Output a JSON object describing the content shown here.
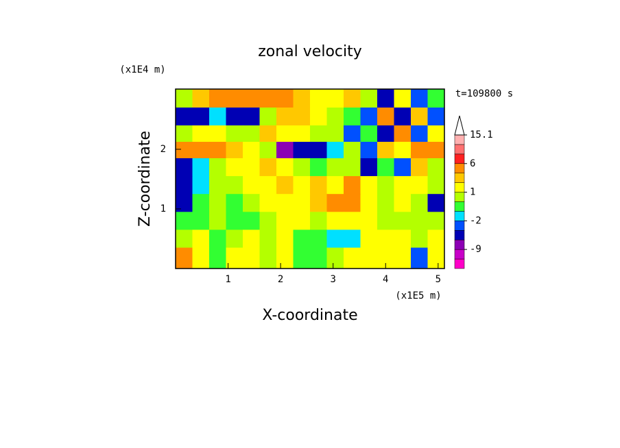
{
  "chart_data": {
    "type": "contour",
    "title": "zonal velocity",
    "x_label": "X-coordinate",
    "y_label": "Z-coordinate",
    "x_unit": "(x1E5 m)",
    "y_unit": "(x1E4 m)",
    "annotation": "t=109800 s",
    "xlim": [
      0,
      5.12
    ],
    "ylim": [
      0,
      3.01
    ],
    "xticks": [
      1,
      2,
      3,
      4,
      5
    ],
    "yticks": [
      1,
      2
    ],
    "x": [
      0.16,
      0.48,
      0.8,
      1.12,
      1.44,
      1.76,
      2.08,
      2.4,
      2.72,
      3.04,
      3.36,
      3.68,
      4.0,
      4.32,
      4.64,
      4.96
    ],
    "y": [
      2.85,
      2.55,
      2.25,
      2.0,
      1.7,
      1.4,
      1.1,
      0.8,
      0.5,
      0.2
    ],
    "z": [
      [
        0,
        2,
        3,
        4,
        3,
        4,
        3,
        2,
        1,
        1,
        2,
        0,
        -4,
        1,
        -3,
        -1
      ],
      [
        -6,
        -5,
        -2,
        -6,
        -6,
        0,
        2,
        2,
        1,
        0,
        -1,
        -3,
        3,
        -4,
        2,
        -3
      ],
      [
        0,
        1,
        1,
        0,
        0,
        2,
        1,
        1,
        0,
        0,
        -3,
        -1,
        -5,
        3,
        -3,
        1
      ],
      [
        4,
        5,
        4,
        2,
        1,
        0,
        -7,
        -6,
        -5,
        -2,
        0,
        -3,
        2,
        1,
        4,
        3
      ],
      [
        -4,
        -2,
        0,
        1,
        1,
        2,
        1,
        0,
        -1,
        0,
        0,
        -5,
        -1,
        -3,
        2,
        0
      ],
      [
        -5,
        -2,
        0,
        0,
        1,
        1,
        2,
        1,
        2,
        1,
        3,
        1,
        0,
        1,
        1,
        0
      ],
      [
        -4,
        -1,
        0,
        -1,
        0,
        1,
        1,
        1,
        2,
        3,
        4,
        1,
        0,
        1,
        0,
        -5
      ],
      [
        -1,
        -1,
        0,
        -1,
        -1,
        0,
        1,
        1,
        0,
        1,
        1,
        1,
        0,
        0,
        0,
        0
      ],
      [
        0,
        1,
        -1,
        0,
        1,
        0,
        1,
        -1,
        -1,
        -2,
        -2,
        1,
        1,
        1,
        0,
        1
      ],
      [
        3,
        1,
        -1,
        1,
        1,
        0,
        1,
        -1,
        -1,
        0,
        1,
        1,
        1,
        1,
        -3,
        1
      ]
    ],
    "colorbar": {
      "levels": [
        -15,
        -12,
        -9,
        -6,
        -3,
        -2,
        -1,
        0,
        1,
        2,
        3,
        6,
        9,
        12,
        15.1
      ],
      "colors": [
        "#ff00c8",
        "#c800c8",
        "#8c00b4",
        "#0000b4",
        "#0050ff",
        "#00e0ff",
        "#32ff32",
        "#b4ff00",
        "#ffff00",
        "#ffc800",
        "#ff8c00",
        "#ff2020",
        "#ff7070",
        "#ffb0b0"
      ],
      "ticks": [
        15.1,
        6,
        1,
        -2,
        -9
      ]
    }
  }
}
